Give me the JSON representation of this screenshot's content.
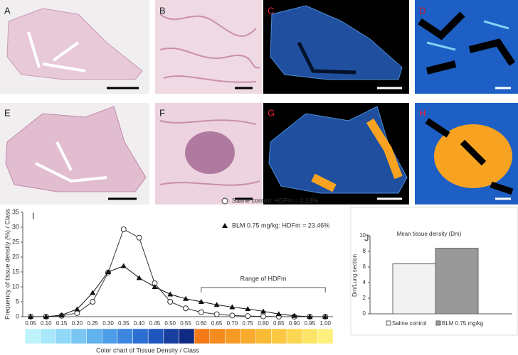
{
  "panel_labels": [
    "A",
    "B",
    "C",
    "D",
    "E",
    "F",
    "G",
    "H"
  ],
  "chart_data": [
    {
      "type": "line",
      "panel": "I",
      "ylabel": "Frequency of tissue density (%) / Class",
      "categories": [
        "0.05",
        "0.10",
        "0.15",
        "0.20",
        "0.25",
        "0.30",
        "0.35",
        "0.40",
        "0.45",
        "0.50",
        "0.55",
        "0.60",
        "0.65",
        "0.70",
        "0.75",
        "0.80",
        "0.85",
        "0.90",
        "0.95",
        "1.00"
      ],
      "series": [
        {
          "name": "Saline control: HDFm = 2.13%",
          "color": "#333333",
          "marker": "circle",
          "values": [
            0,
            0,
            0.3,
            1.2,
            5,
            14.8,
            29.3,
            26.5,
            11.2,
            5,
            2.8,
            1.5,
            0.8,
            0.4,
            0.2,
            0.1,
            0,
            0,
            0,
            0
          ]
        },
        {
          "name": "BLM 0.75 mg/kg: HDFm = 23.46%",
          "color": "#111111",
          "marker": "triangle",
          "values": [
            0,
            0,
            0.5,
            2.5,
            8,
            15,
            17,
            13,
            10,
            7.5,
            6,
            5,
            4,
            3.2,
            2.6,
            1.8,
            0.9,
            0.3,
            0,
            0
          ]
        }
      ],
      "ylim": [
        0,
        35
      ],
      "yticks": [
        0,
        5,
        10,
        15,
        20,
        25,
        30,
        35
      ],
      "annotation": "Range of HDFm",
      "colorbar_label": "Color chart of Tissue Density / Class",
      "colorbar_colors": [
        "#bff3fb",
        "#a8e8fa",
        "#8fd8f7",
        "#79c6f3",
        "#62b2ee",
        "#4e9de8",
        "#3c86df",
        "#2c6fd2",
        "#1f56bd",
        "#183f9e",
        "#0f2a80",
        "#f47a18",
        "#f58a1e",
        "#f79a24",
        "#f8aa2c",
        "#f9ba36",
        "#fac842",
        "#fbd652",
        "#fce466",
        "#fdf07e"
      ]
    },
    {
      "type": "bar",
      "panel": "J",
      "title": "Mean tissue density (Dm)",
      "ylabel": "Dm/Lung section",
      "series": [
        {
          "name": "Saline control",
          "color": "#f2f2f2",
          "values": [
            6.4
          ]
        },
        {
          "name": "BLM 0.75 mg/kg",
          "color": "#999999",
          "values": [
            8.4
          ]
        }
      ],
      "ylim": [
        0,
        10
      ],
      "yticks": [
        0,
        2,
        4,
        6,
        8,
        10
      ]
    }
  ]
}
